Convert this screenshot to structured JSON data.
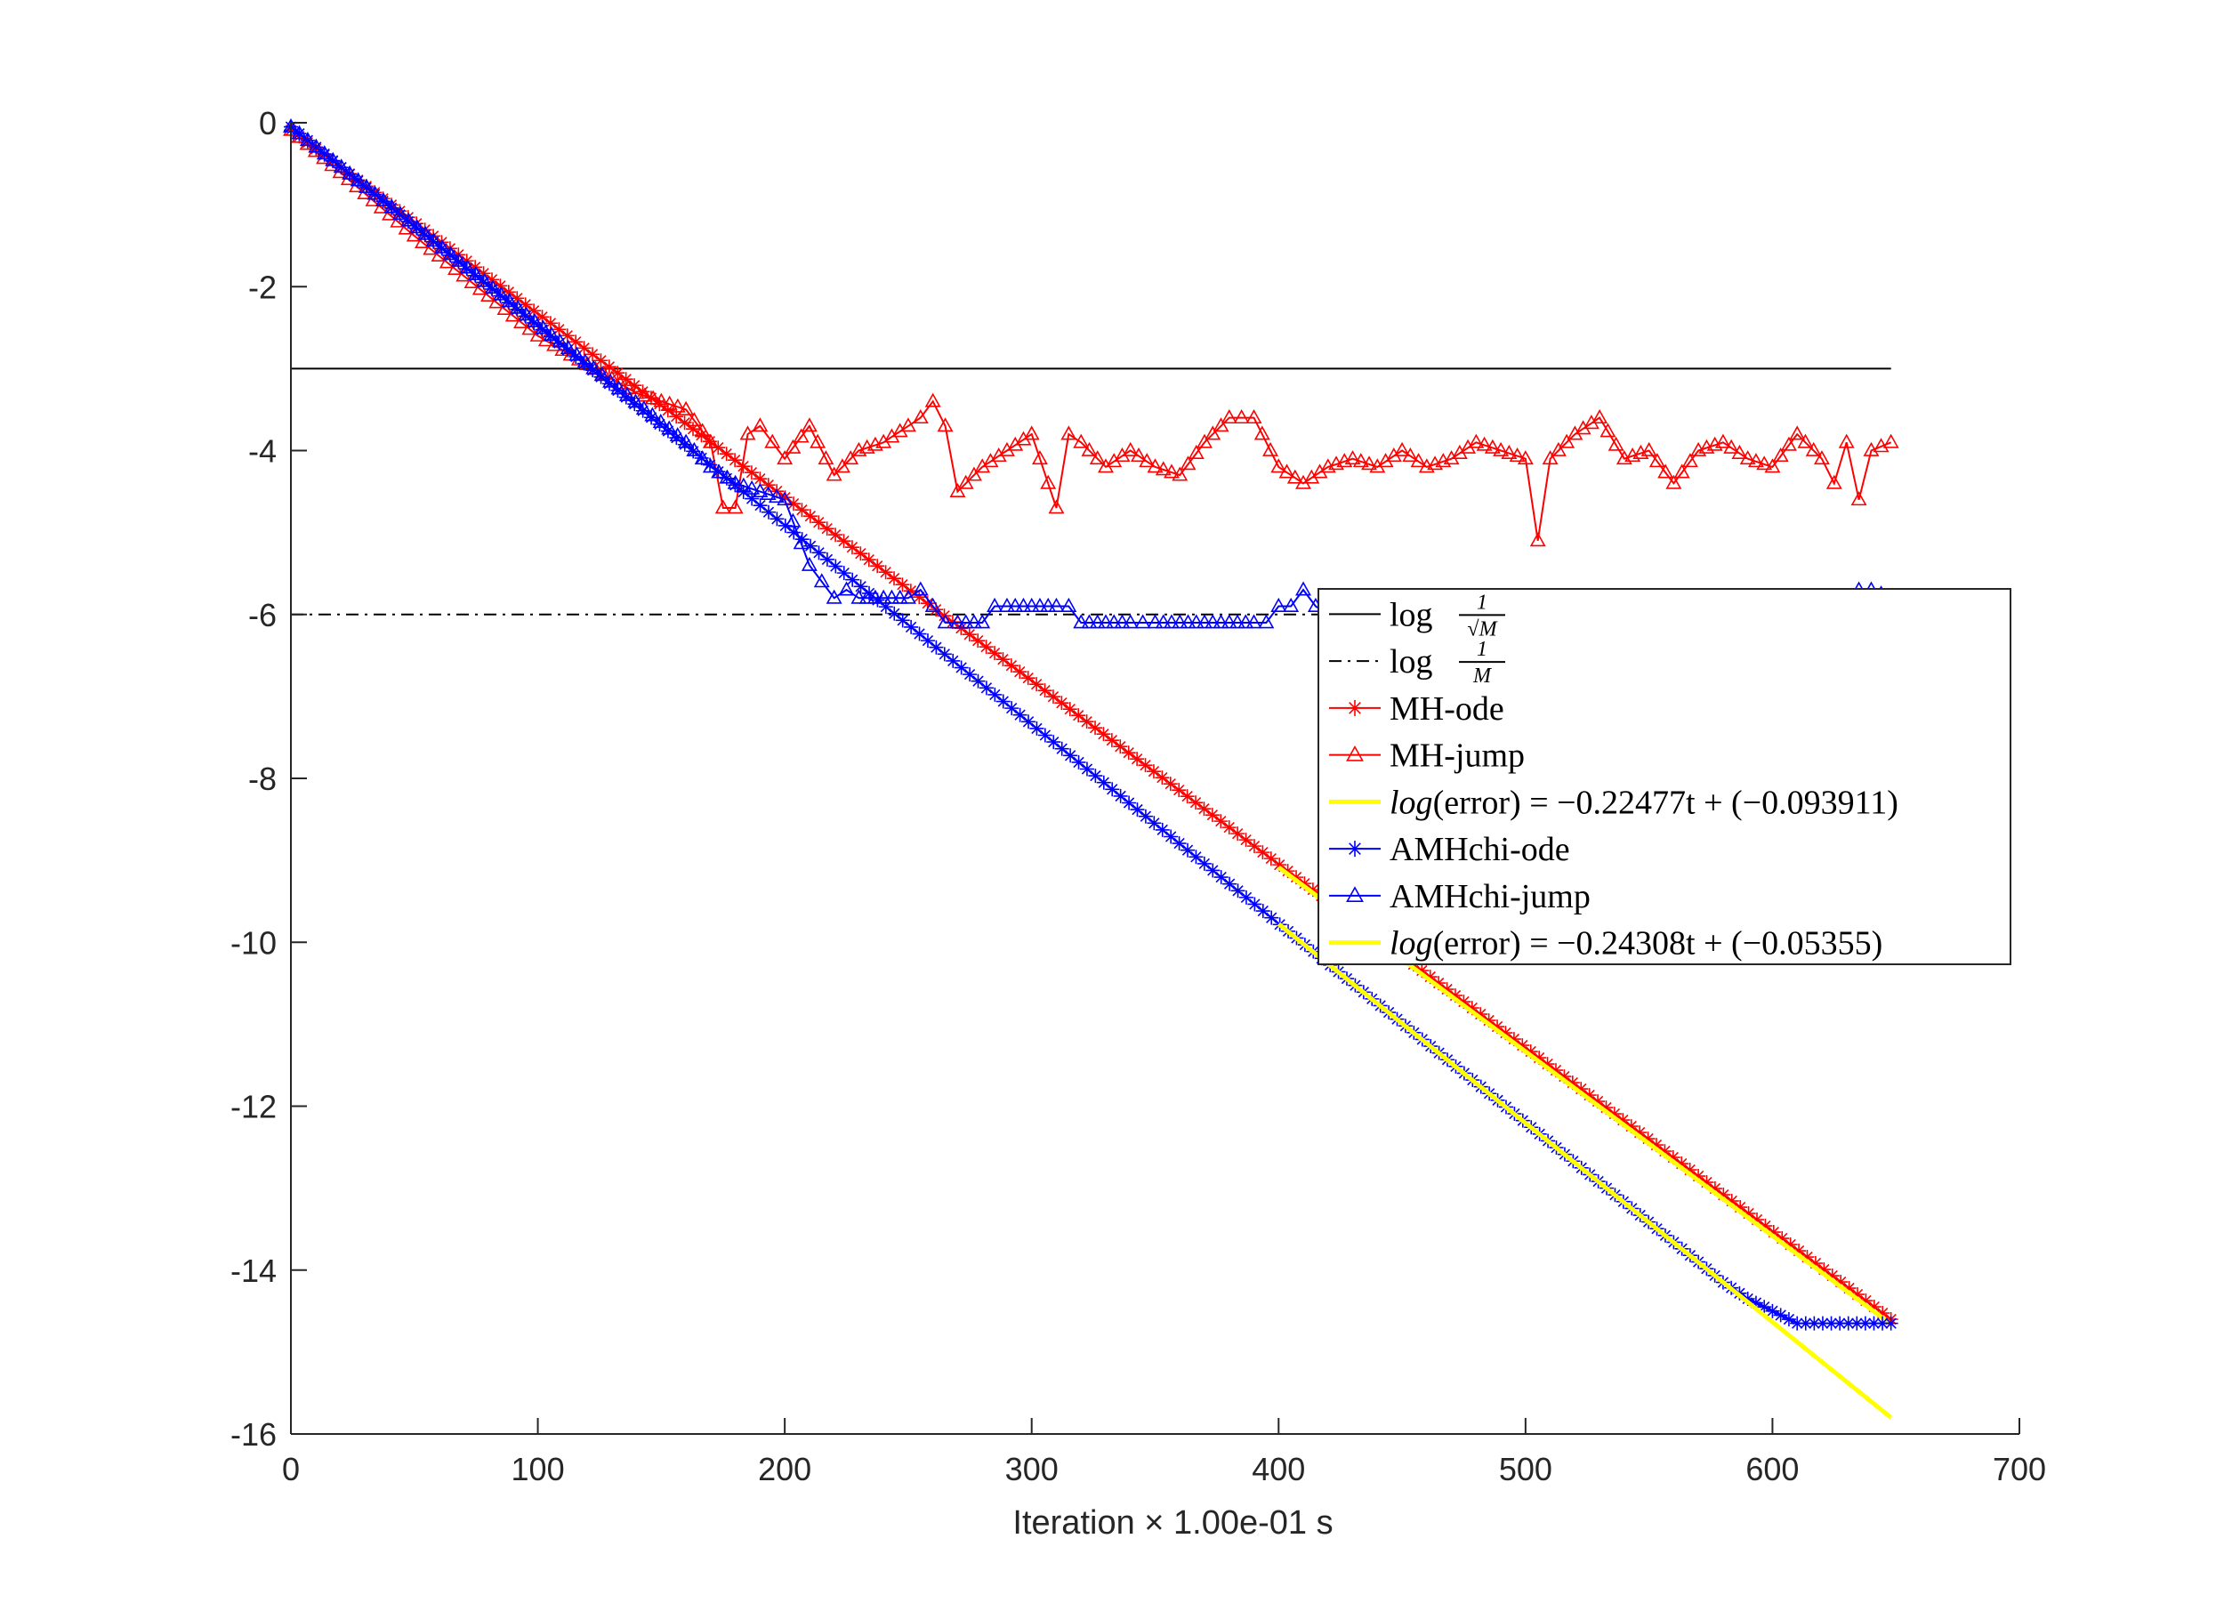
{
  "chart_data": {
    "type": "line",
    "xlabel": "Iteration × 1.00e-01 s",
    "ylabel": "",
    "xlim": [
      0,
      700
    ],
    "ylim": [
      -16,
      0
    ],
    "xticks": [
      "0",
      "100",
      "200",
      "300",
      "400",
      "500",
      "600",
      "700"
    ],
    "yticks": [
      "0",
      "-2",
      "-4",
      "-6",
      "-8",
      "-10",
      "-12",
      "-14",
      "-16"
    ],
    "grid": false,
    "legend_placement": "center-right",
    "series": [
      {
        "name": "log 1/√M",
        "color": "#000000",
        "style": "solid",
        "x": [
          0,
          648
        ],
        "y": [
          -3.0,
          -3.0
        ]
      },
      {
        "name": "log 1/M",
        "color": "#000000",
        "style": "dashdot",
        "x": [
          0,
          648
        ],
        "y": [
          -6.0,
          -6.0
        ]
      },
      {
        "name": "MH-ode",
        "color": "#ff0000",
        "marker": "star",
        "x": [
          0,
          648
        ],
        "y": [
          -0.09,
          -14.6
        ]
      },
      {
        "name": "MH-jump",
        "color": "#ff0000",
        "marker": "triangle",
        "x": [
          0,
          50,
          100,
          140,
          160,
          170,
          175,
          180,
          185,
          190,
          195,
          200,
          210,
          220,
          230,
          240,
          250,
          255,
          260,
          265,
          270,
          280,
          290,
          300,
          310,
          315,
          320,
          330,
          340,
          350,
          360,
          370,
          380,
          385,
          390,
          400,
          410,
          420,
          430,
          440,
          450,
          460,
          470,
          480,
          490,
          500,
          505,
          510,
          520,
          530,
          540,
          550,
          560,
          570,
          580,
          590,
          600,
          610,
          620,
          625,
          630,
          635,
          640,
          648
        ],
        "y": [
          -0.09,
          -1.38,
          -2.6,
          -3.3,
          -3.5,
          -3.9,
          -4.7,
          -4.7,
          -3.8,
          -3.7,
          -3.9,
          -4.1,
          -3.7,
          -4.3,
          -4.0,
          -3.9,
          -3.7,
          -3.6,
          -3.4,
          -3.7,
          -4.5,
          -4.2,
          -4.0,
          -3.8,
          -4.7,
          -3.8,
          -3.9,
          -4.2,
          -4.0,
          -4.2,
          -4.3,
          -3.9,
          -3.6,
          -3.6,
          -3.6,
          -4.2,
          -4.4,
          -4.2,
          -4.1,
          -4.2,
          -4.0,
          -4.2,
          -4.1,
          -3.9,
          -4.0,
          -4.1,
          -5.1,
          -4.1,
          -3.8,
          -3.6,
          -4.1,
          -4.0,
          -4.4,
          -4.0,
          -3.9,
          -4.1,
          -4.2,
          -3.8,
          -4.1,
          -4.4,
          -3.9,
          -4.6,
          -4.0,
          -3.9
        ]
      },
      {
        "name": "log(error) = −0.22477t + (−0.093911)",
        "color": "#ffff00",
        "style": "solid",
        "x": [
          400,
          648
        ],
        "y": [
          -9.085,
          -14.66
        ]
      },
      {
        "name": "AMHchi-ode",
        "color": "#0000ff",
        "marker": "star",
        "x": [
          0,
          560,
          570,
          580,
          590,
          600,
          610,
          648
        ],
        "y": [
          -0.05,
          -13.66,
          -13.9,
          -14.15,
          -14.35,
          -14.5,
          -14.65,
          -14.65
        ]
      },
      {
        "name": "AMHchi-jump",
        "color": "#0000ff",
        "marker": "triangle",
        "x": [
          0,
          160,
          170,
          180,
          190,
          200,
          210,
          215,
          220,
          225,
          230,
          240,
          250,
          255,
          260,
          265,
          270,
          280,
          285,
          290,
          300,
          310,
          315,
          320,
          330,
          340,
          345,
          350,
          360,
          370,
          380,
          390,
          395,
          400,
          405,
          410,
          415,
          420,
          430,
          440,
          450,
          460,
          470,
          480,
          490,
          500,
          510,
          520,
          530,
          540,
          550,
          560,
          570,
          580,
          590,
          600,
          610,
          620,
          630,
          635,
          640,
          648
        ],
        "y": [
          -0.05,
          -3.9,
          -4.2,
          -4.4,
          -4.5,
          -4.6,
          -5.4,
          -5.6,
          -5.8,
          -5.7,
          -5.8,
          -5.8,
          -5.8,
          -5.7,
          -5.9,
          -6.1,
          -6.1,
          -6.1,
          -5.9,
          -5.9,
          -5.9,
          -5.9,
          -5.9,
          -6.1,
          -6.1,
          -6.1,
          -6.1,
          -6.1,
          -6.1,
          -6.1,
          -6.1,
          -6.1,
          -6.1,
          -5.9,
          -5.9,
          -5.7,
          -5.9,
          -6.0,
          -5.9,
          -6.0,
          -5.9,
          -6.0,
          -5.9,
          -6.0,
          -5.9,
          -6.0,
          -5.9,
          -6.0,
          -5.9,
          -6.0,
          -5.9,
          -6.0,
          -5.9,
          -6.0,
          -5.9,
          -6.0,
          -5.9,
          -5.9,
          -5.8,
          -5.7,
          -5.7,
          -5.8
        ]
      },
      {
        "name": "log(error) = −0.24308t + (−0.05355)",
        "color": "#ffff00",
        "style": "solid",
        "x": [
          400,
          648
        ],
        "y": [
          -9.777,
          -15.8
        ]
      }
    ]
  },
  "legend": [
    {
      "type": "frac",
      "prefix": "log ",
      "numerator": "1",
      "denominator": "√M",
      "color": "#000000",
      "style": "solid",
      "marker": ""
    },
    {
      "type": "frac",
      "prefix": "log ",
      "numerator": "1",
      "denominator": "M",
      "color": "#000000",
      "style": "dashdot",
      "marker": ""
    },
    {
      "type": "text",
      "label": "MH-ode",
      "color": "#ff0000",
      "style": "solid",
      "marker": "star"
    },
    {
      "type": "text",
      "label": "MH-jump",
      "color": "#ff0000",
      "style": "solid",
      "marker": "triangle"
    },
    {
      "type": "formula",
      "italic": "log",
      "rest": "(error) = −0.22477t + (−0.093911)",
      "color": "#ffff00",
      "style": "solid",
      "marker": ""
    },
    {
      "type": "text",
      "label": "AMHchi-ode",
      "color": "#0000ff",
      "style": "solid",
      "marker": "star"
    },
    {
      "type": "text",
      "label": "AMHchi-jump",
      "color": "#0000ff",
      "style": "solid",
      "marker": "triangle"
    },
    {
      "type": "formula",
      "italic": "log",
      "rest": "(error) = −0.24308t + (−0.05355)",
      "color": "#ffff00",
      "style": "solid",
      "marker": ""
    }
  ]
}
